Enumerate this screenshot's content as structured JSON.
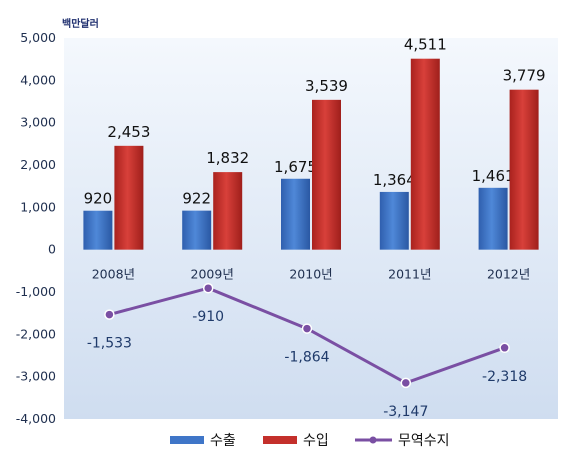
{
  "chart_data": {
    "type": "bar",
    "unit_label": "백만달러",
    "categories": [
      "2008년",
      "2009년",
      "2010년",
      "2011년",
      "2012년"
    ],
    "series": [
      {
        "name": "수출",
        "type": "bar",
        "values": [
          920,
          922,
          1675,
          1364,
          1461
        ],
        "labels": [
          "920",
          "922",
          "1,675",
          "1,364",
          "1,461"
        ]
      },
      {
        "name": "수입",
        "type": "bar",
        "values": [
          2453,
          1832,
          3539,
          4511,
          3779
        ],
        "labels": [
          "2,453",
          "1,832",
          "3,539",
          "4,511",
          "3,779"
        ]
      },
      {
        "name": "무역수지",
        "type": "line",
        "values": [
          -1533,
          -910,
          -1864,
          -3147,
          -2318
        ],
        "labels": [
          "-1,533",
          "-910",
          "-1,864",
          "-3,147",
          "-2,318"
        ]
      }
    ],
    "ylim": [
      -4000,
      5000
    ],
    "yticks": [
      5000,
      4000,
      3000,
      2000,
      1000,
      0,
      -1000,
      -2000,
      -3000,
      -4000
    ],
    "ytick_labels": [
      "5,000",
      "4,000",
      "3,000",
      "2,000",
      "1,000",
      "0",
      "-1,000",
      "-2,000",
      "-3,000",
      "-4,000"
    ],
    "grid": false,
    "legend_position": "bottom",
    "colors": {
      "수출": "#3f76c8",
      "수입": "#c4302b",
      "무역수지": "#7a4fa3",
      "plot_top": "#f4f8fd",
      "plot_bottom": "#cfddf0"
    }
  }
}
